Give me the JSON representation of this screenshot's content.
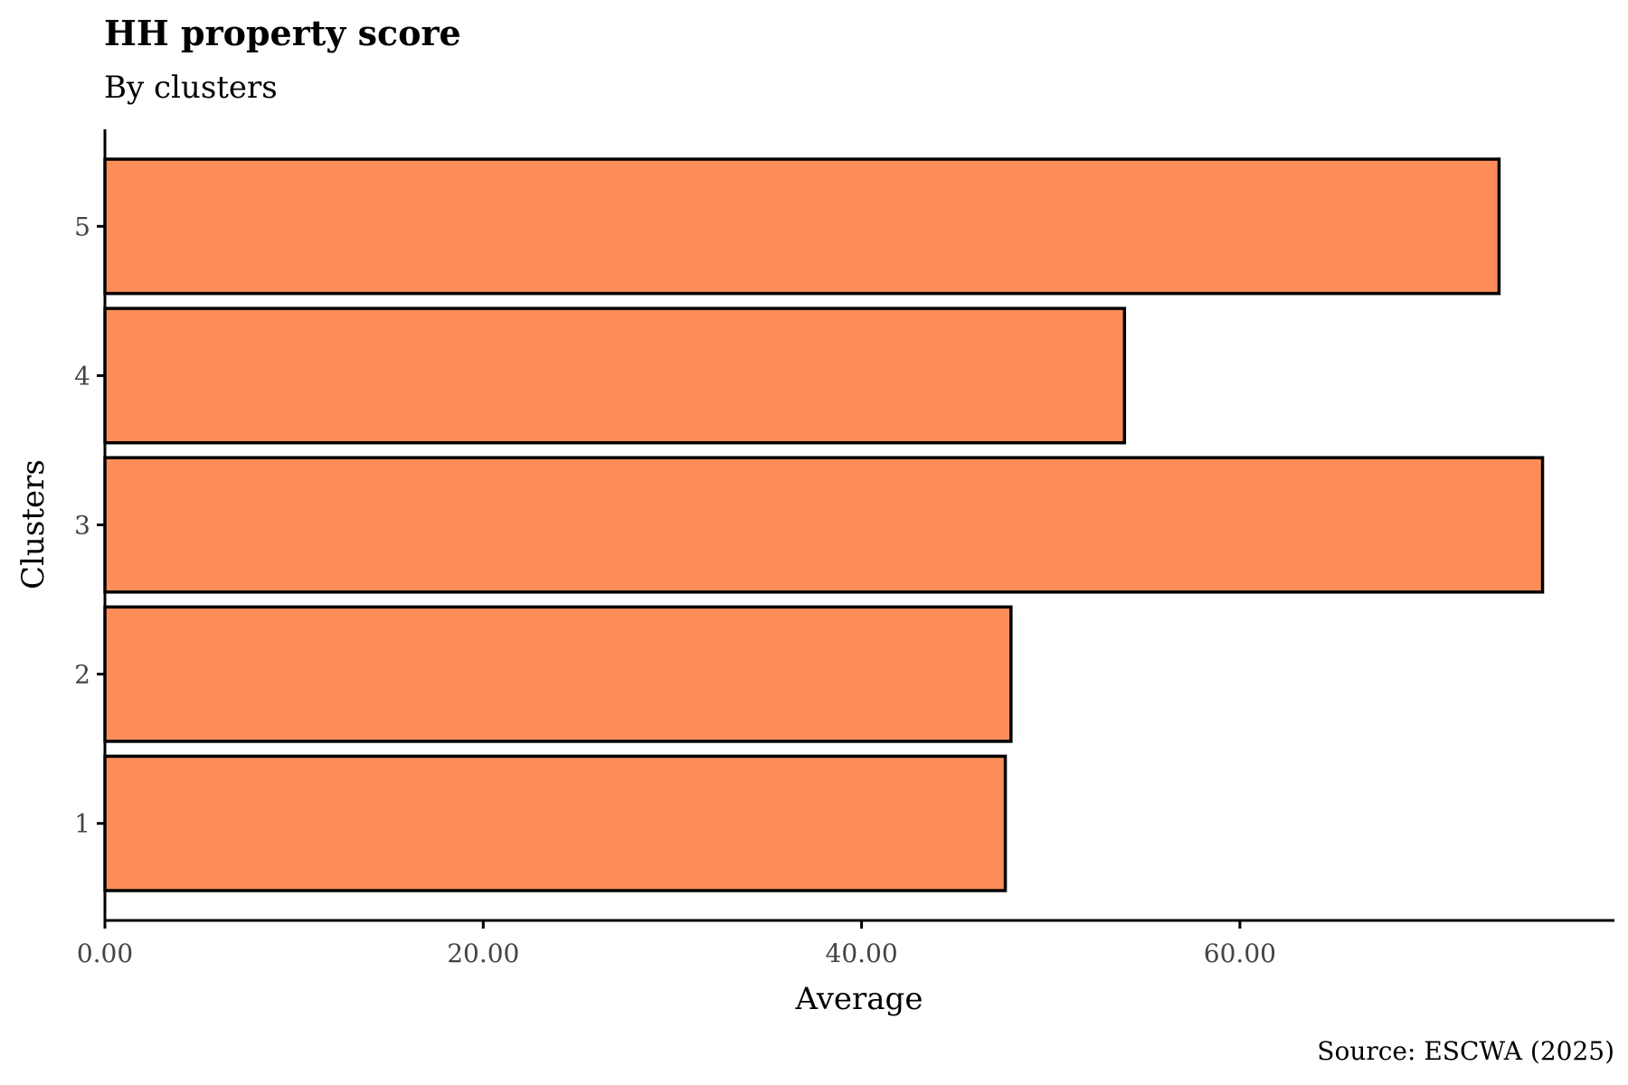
{
  "chart_data": {
    "type": "bar",
    "orientation": "horizontal",
    "title": "HH property score",
    "subtitle": "By clusters",
    "xlabel": "Average",
    "ylabel": "Clusters",
    "caption": "Source: ESCWA (2025)",
    "categories": [
      "1",
      "2",
      "3",
      "4",
      "5"
    ],
    "values": [
      47.6,
      47.9,
      76.0,
      53.9,
      73.7
    ],
    "xlim": [
      0,
      79.8
    ],
    "xticks": [
      0,
      20,
      40,
      60
    ],
    "xtick_labels": [
      "0.00",
      "20.00",
      "40.00",
      "60.00"
    ],
    "bar_color": "#FC8D59",
    "grid": false,
    "legend": "none"
  }
}
